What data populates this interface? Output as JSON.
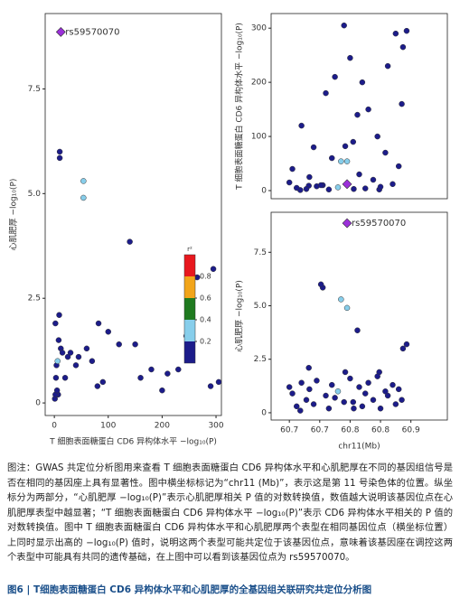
{
  "chart_data": [
    {
      "type": "scatter",
      "xlabel": "T 细胞表面糖蛋白 CD6 异构体水平 −log₁₀(P)",
      "ylabel": "心肌肥厚 −log₁₀(P)",
      "annotation": "rs59570070",
      "lead_color": "#9b30d9",
      "x": [
        12,
        10,
        10,
        54,
        54,
        140,
        295,
        265,
        82,
        305,
        15,
        40,
        5,
        120,
        3,
        25,
        80,
        8,
        180,
        2,
        60,
        210,
        6,
        245,
        90,
        30,
        200,
        4,
        150,
        20,
        100,
        7,
        70,
        230,
        12,
        290,
        45,
        160,
        9,
        2,
        1,
        3
      ],
      "y": [
        8.86,
        6.0,
        5.85,
        5.3,
        4.9,
        3.85,
        3.2,
        3.0,
        1.9,
        0.5,
        1.2,
        0.9,
        0.3,
        1.4,
        0.6,
        1.1,
        0.4,
        1.5,
        0.8,
        0.2,
        1.3,
        0.7,
        1.0,
        1.6,
        0.5,
        1.2,
        0.3,
        0.9,
        1.4,
        0.6,
        1.7,
        0.2,
        1.0,
        0.8,
        1.3,
        0.4,
        1.1,
        0.6,
        2.1,
        1.9,
        0.1,
        0.2
      ],
      "r2": [
        1.0,
        0.05,
        0.05,
        0.3,
        0.3,
        0.05,
        0.05,
        0.05,
        0.05,
        0.05,
        0.05,
        0.05,
        0.05,
        0.05,
        0.05,
        0.05,
        0.05,
        0.05,
        0.05,
        0.05,
        0.05,
        0.05,
        0.2,
        0.05,
        0.05,
        0.05,
        0.05,
        0.05,
        0.05,
        0.05,
        0.05,
        0.05,
        0.05,
        0.05,
        0.05,
        0.05,
        0.05,
        0.05,
        0.05,
        0.05,
        0.05,
        0.05
      ],
      "xlim": [
        -17,
        310
      ],
      "ylim": [
        -0.3,
        9.3
      ],
      "xticks": [
        0,
        100,
        200,
        300
      ],
      "yticks": [
        0,
        2.5,
        {
          "value": 5,
          "label": "5.0"
        },
        7.5
      ],
      "colorbar": {
        "title": "r²",
        "lim": [
          0,
          1
        ],
        "ticks": [
          0.2,
          0.4,
          0.6,
          0.8
        ],
        "colors": [
          "#1c1c8a",
          "#87ceeb",
          "#1f7a1f",
          "#f2a51a",
          "#e8181e"
        ]
      }
    },
    {
      "type": "scatter",
      "ylabel": "T 细胞表面糖蛋白 CD6 异构体水平 −log₁₀(P)",
      "lead_color": "#9b30d9",
      "x": [
        60.795,
        60.752,
        60.755,
        60.785,
        60.795,
        60.812,
        60.893,
        60.887,
        60.792,
        60.79,
        60.7,
        60.705,
        60.712,
        60.72,
        60.728,
        60.733,
        60.74,
        60.745,
        60.76,
        60.765,
        60.77,
        60.775,
        60.78,
        60.8,
        60.805,
        60.815,
        60.82,
        60.825,
        60.83,
        60.838,
        60.845,
        60.85,
        60.858,
        60.862,
        60.87,
        60.875,
        60.88,
        60.885,
        60.732,
        60.848,
        60.718,
        60.806
      ],
      "y": [
        12,
        10,
        10,
        54,
        54,
        140,
        295,
        265,
        82,
        305,
        15,
        40,
        5,
        120,
        3,
        25,
        80,
        8,
        180,
        2,
        60,
        210,
        6,
        245,
        90,
        30,
        200,
        4,
        150,
        20,
        100,
        7,
        70,
        230,
        12,
        290,
        45,
        160,
        9,
        2,
        1,
        3
      ],
      "r2": [
        1.0,
        0.05,
        0.05,
        0.3,
        0.3,
        0.05,
        0.05,
        0.05,
        0.05,
        0.05,
        0.05,
        0.05,
        0.05,
        0.05,
        0.05,
        0.05,
        0.05,
        0.05,
        0.05,
        0.05,
        0.05,
        0.05,
        0.2,
        0.05,
        0.05,
        0.05,
        0.05,
        0.05,
        0.05,
        0.05,
        0.05,
        0.05,
        0.05,
        0.05,
        0.05,
        0.05,
        0.05,
        0.05,
        0.05,
        0.05,
        0.05,
        0.05
      ],
      "xlim": [
        60.67,
        60.96
      ],
      "ylim": [
        -15,
        327
      ],
      "yticks": [
        0,
        100,
        200,
        300
      ]
    },
    {
      "type": "scatter",
      "xlabel": "chr11(Mb)",
      "ylabel": "心肌肥厚 −log₁₀(P)",
      "annotation": "rs59570070",
      "lead_color": "#9b30d9",
      "x": [
        60.795,
        60.752,
        60.755,
        60.785,
        60.795,
        60.812,
        60.893,
        60.887,
        60.792,
        60.79,
        60.7,
        60.705,
        60.712,
        60.72,
        60.728,
        60.733,
        60.74,
        60.745,
        60.76,
        60.765,
        60.77,
        60.775,
        60.78,
        60.8,
        60.805,
        60.815,
        60.82,
        60.825,
        60.83,
        60.838,
        60.845,
        60.85,
        60.858,
        60.862,
        60.87,
        60.875,
        60.88,
        60.885,
        60.732,
        60.848,
        60.718,
        60.806
      ],
      "y": [
        8.86,
        6.0,
        5.85,
        5.3,
        4.9,
        3.85,
        3.2,
        3.0,
        1.9,
        0.5,
        1.2,
        0.9,
        0.3,
        1.4,
        0.6,
        1.1,
        0.4,
        1.5,
        0.8,
        0.2,
        1.3,
        0.7,
        1.0,
        1.6,
        0.5,
        1.2,
        0.3,
        0.9,
        1.4,
        0.6,
        1.7,
        0.2,
        1.0,
        0.8,
        1.3,
        0.4,
        1.1,
        0.6,
        2.1,
        1.9,
        0.1,
        0.2
      ],
      "r2": [
        1.0,
        0.05,
        0.05,
        0.3,
        0.3,
        0.05,
        0.05,
        0.05,
        0.05,
        0.05,
        0.05,
        0.05,
        0.05,
        0.05,
        0.05,
        0.05,
        0.05,
        0.05,
        0.05,
        0.05,
        0.05,
        0.05,
        0.2,
        0.05,
        0.05,
        0.05,
        0.05,
        0.05,
        0.05,
        0.05,
        0.05,
        0.05,
        0.05,
        0.05,
        0.05,
        0.05,
        0.05,
        0.05,
        0.05,
        0.05,
        0.05,
        0.05
      ],
      "xlim": [
        60.67,
        60.96
      ],
      "ylim": [
        -0.34,
        9.37
      ],
      "xticks": [
        {
          "value": 60.7,
          "label": "60.7"
        },
        {
          "value": 60.75,
          "label": "60.7"
        },
        {
          "value": 60.8,
          "label": "60.8"
        },
        {
          "value": 60.85,
          "label": "60.8"
        },
        {
          "value": 60.9,
          "label": "60.9"
        }
      ],
      "yticks": [
        0,
        2.5,
        {
          "value": 5,
          "label": "5.0"
        },
        7.5
      ]
    }
  ],
  "caption": {
    "text": "图注：GWAS 共定位分析图用来查看 T 细胞表面糖蛋白 CD6 异构体水平和心肌肥厚在不同的基因组信号是否在相同的基因座上具有显著性。图中横坐标标记为“chr11 (Mb)”，表示这是第 11 号染色体的位置。纵坐标分为两部分，“心肌肥厚 −log₁₀(P)”表示心肌肥厚相关 P 值的对数转换值，数值越大说明该基因位点在心肌肥厚表型中越显著；“T 细胞表面糖蛋白 CD6 异构体水平 −log₁₀(P)”表示 CD6 异构体水平相关的 P 值的对数转换值。图中 T 细胞表面糖蛋白 CD6 异构体水平和心肌肥厚两个表型在相同基因位点（横坐标位置）上同时显示出高的 −log₁₀(P) 值时，说明这两个表型可能共定位于该基因位点，意味着该基因座在调控这两个表型中可能具有共同的遗传基础，在上图中可以看到该基因位点为 rs59570070。",
    "figure_title": "图6 | T细胞表面糖蛋白 CD6 异构体水平和心肌肥厚的全基因组关联研究共定位分析图"
  }
}
